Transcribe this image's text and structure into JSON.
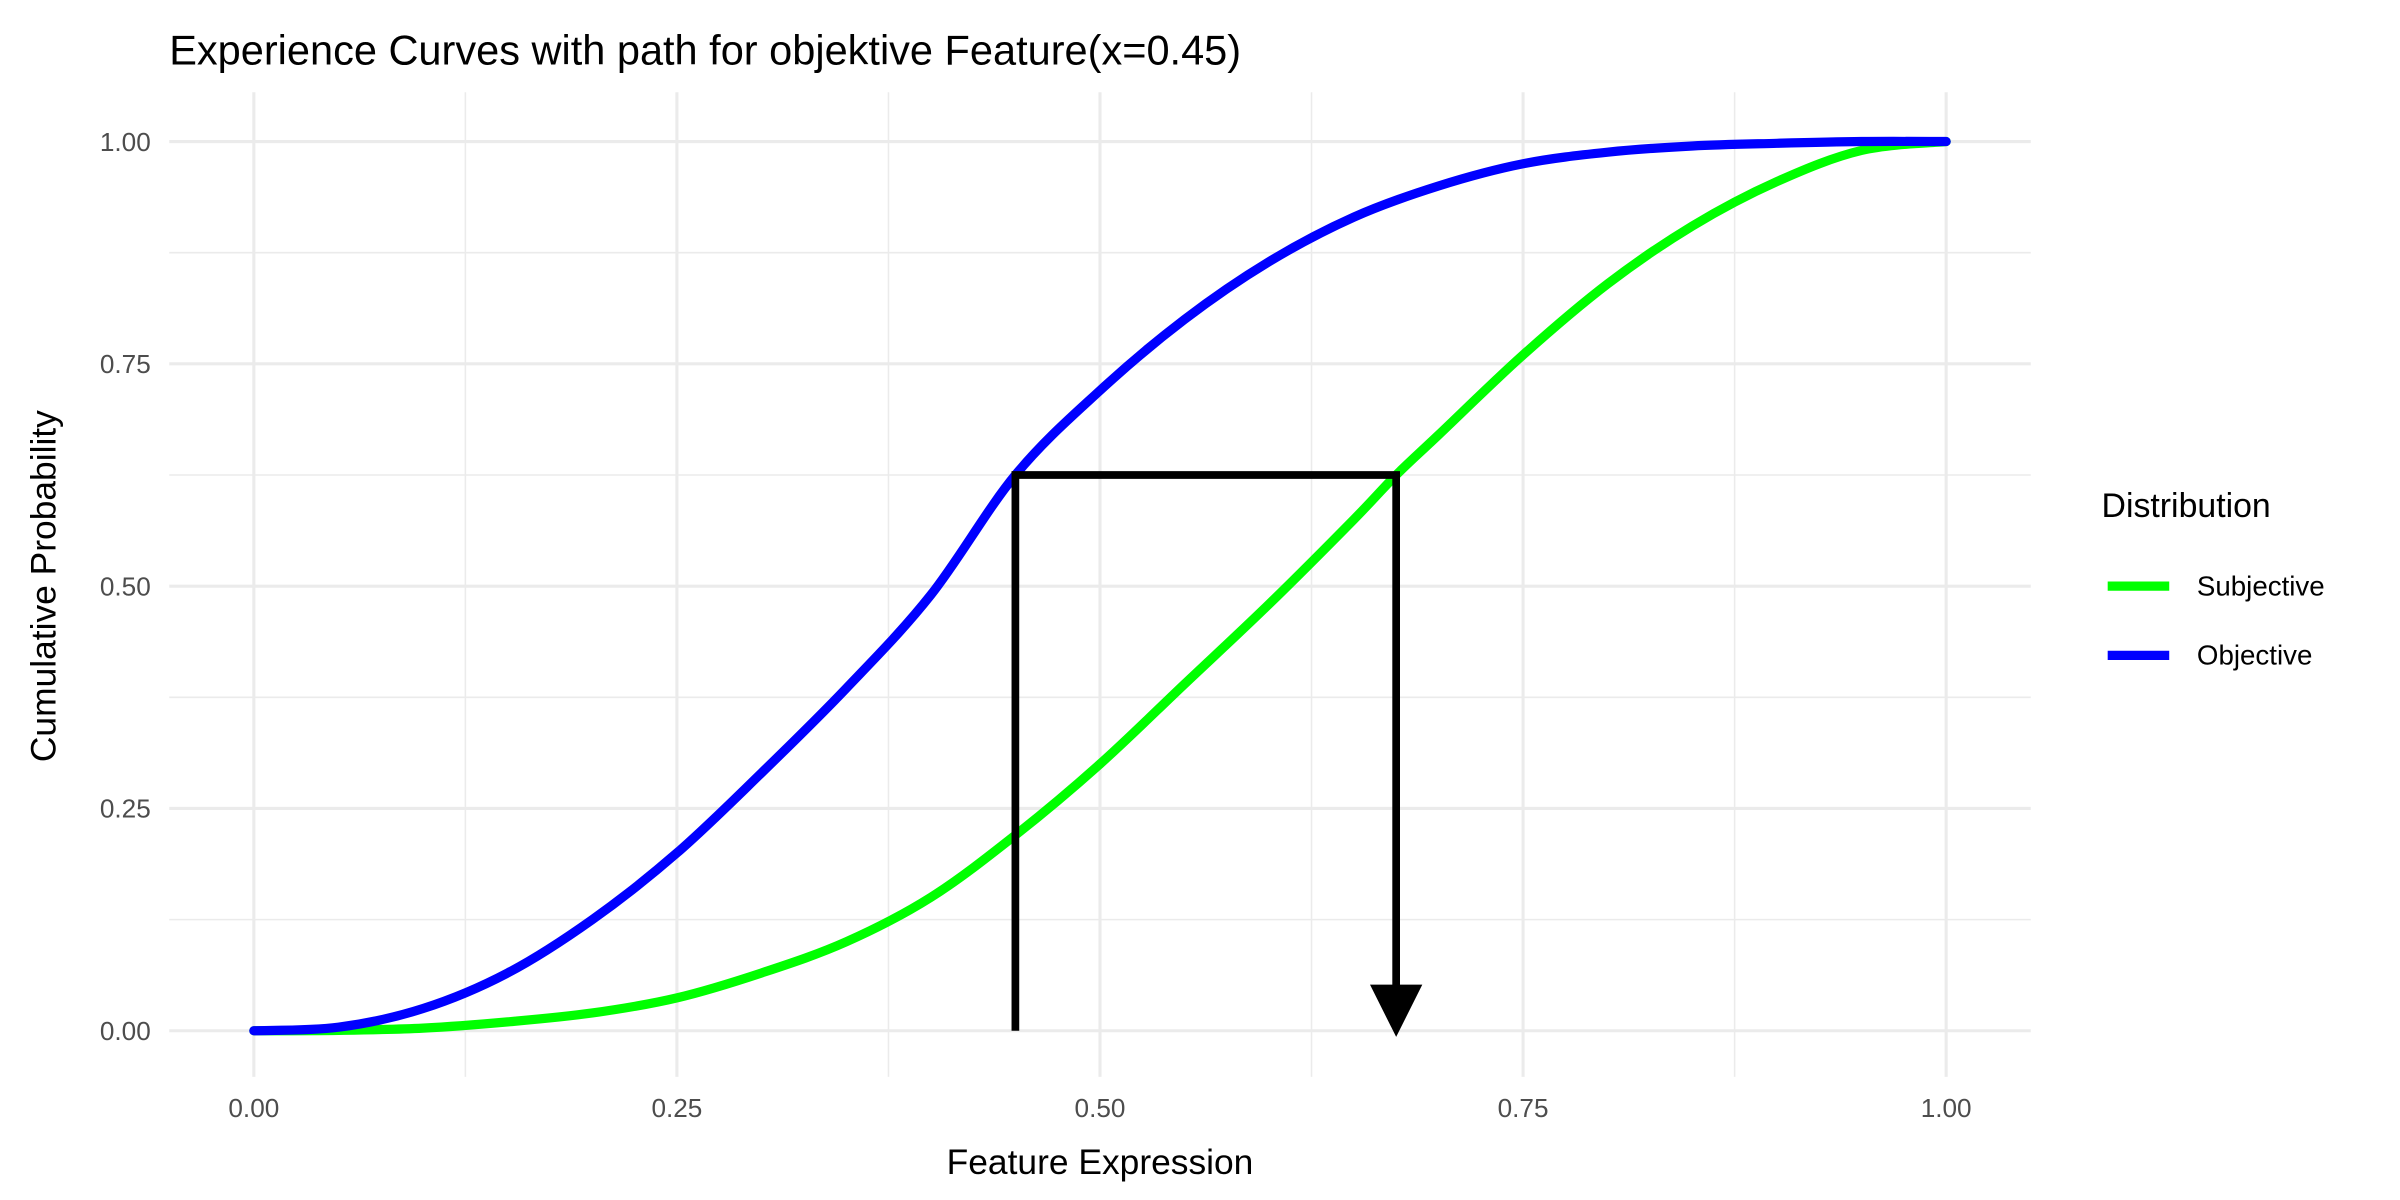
{
  "chart_data": {
    "type": "line",
    "title": "Experience Curves with path for objektive Feature(x=0.45)",
    "xlabel": "Feature Expression",
    "ylabel": "Cumulative Probability",
    "xlim": [
      0,
      1
    ],
    "ylim": [
      0,
      1
    ],
    "x_ticks": [
      "0.00",
      "0.25",
      "0.50",
      "0.75",
      "1.00"
    ],
    "y_ticks": [
      "0.00",
      "0.25",
      "0.50",
      "0.75",
      "1.00"
    ],
    "grid": true,
    "legend": {
      "title": "Distribution",
      "position": "right"
    },
    "series": [
      {
        "name": "Subjective",
        "color": "#00ff00",
        "x": [
          0,
          0.05,
          0.1,
          0.15,
          0.2,
          0.25,
          0.3,
          0.35,
          0.4,
          0.45,
          0.5,
          0.55,
          0.6,
          0.65,
          0.675,
          0.7,
          0.75,
          0.8,
          0.85,
          0.9,
          0.95,
          1
        ],
        "y": [
          0,
          0.0005,
          0.003,
          0.01,
          0.02,
          0.037,
          0.065,
          0.1,
          0.15,
          0.22,
          0.3,
          0.39,
          0.48,
          0.575,
          0.625,
          0.67,
          0.76,
          0.84,
          0.905,
          0.955,
          0.99,
          1
        ]
      },
      {
        "name": "Objective",
        "color": "#0000ff",
        "x": [
          0,
          0.05,
          0.1,
          0.15,
          0.2,
          0.25,
          0.3,
          0.35,
          0.4,
          0.45,
          0.5,
          0.55,
          0.6,
          0.65,
          0.7,
          0.75,
          0.8,
          0.85,
          0.9,
          0.95,
          1
        ],
        "y": [
          0,
          0.004,
          0.025,
          0.065,
          0.125,
          0.2,
          0.29,
          0.385,
          0.49,
          0.625,
          0.72,
          0.8,
          0.865,
          0.915,
          0.95,
          0.975,
          0.988,
          0.995,
          0.998,
          1,
          1
        ]
      }
    ],
    "annotation_path": {
      "color": "#000000",
      "x_start": 0.45,
      "y_level": 0.625,
      "x_end": 0.675,
      "arrow": "down"
    }
  }
}
